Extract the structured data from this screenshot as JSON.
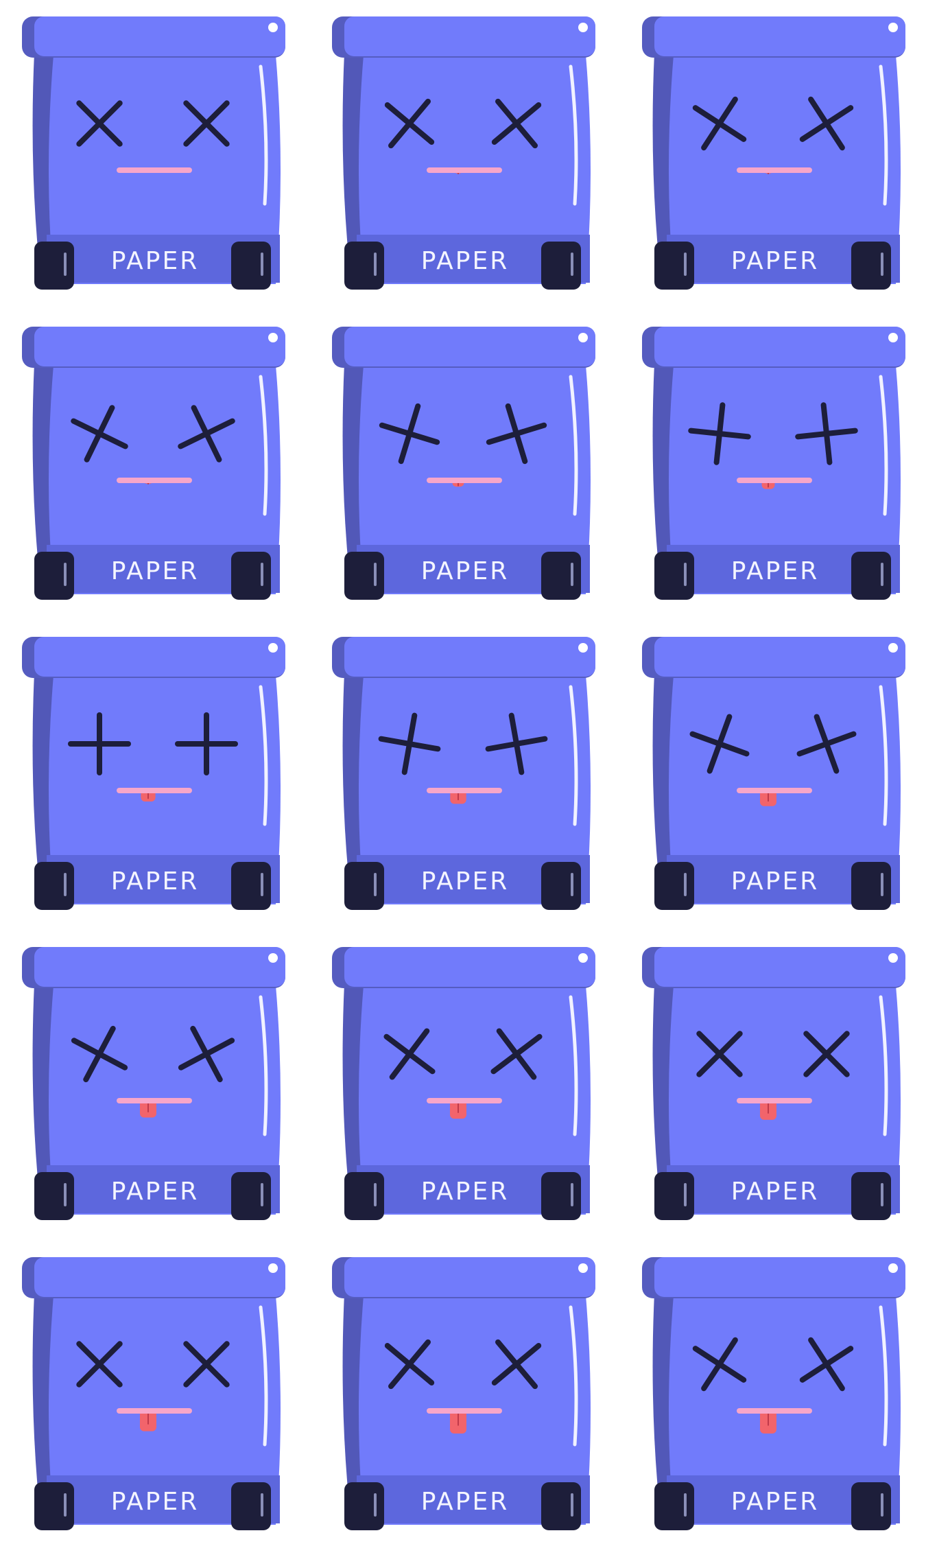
{
  "sprite_sheet": {
    "colors": {
      "background": "#ffffff",
      "body": "#717bfb",
      "body_shadow": "#5258b8",
      "lid": "#717bfb",
      "lid_shadow": "#555cc0",
      "band": "#5d67dd",
      "label_text": "#f4f5ff",
      "wheel": "#1d1e3a",
      "eye": "#1d1e3a",
      "mouth": "#f7a6c9",
      "tongue": "#f2646b"
    },
    "frames": [
      {
        "label": "PAPER",
        "eye_angle_deg": 45,
        "tongue_fraction": 0.0
      },
      {
        "label": "PAPER",
        "eye_angle_deg": 40,
        "tongue_fraction": 0.05
      },
      {
        "label": "PAPER",
        "eye_angle_deg": 33,
        "tongue_fraction": 0.1
      },
      {
        "label": "PAPER",
        "eye_angle_deg": 26,
        "tongue_fraction": 0.15
      },
      {
        "label": "PAPER",
        "eye_angle_deg": 17,
        "tongue_fraction": 0.3
      },
      {
        "label": "PAPER",
        "eye_angle_deg": 6,
        "tongue_fraction": 0.4
      },
      {
        "label": "PAPER",
        "eye_angle_deg": 0,
        "tongue_fraction": 0.5
      },
      {
        "label": "PAPER",
        "eye_angle_deg": 10,
        "tongue_fraction": 0.6
      },
      {
        "label": "PAPER",
        "eye_angle_deg": 20,
        "tongue_fraction": 0.7
      },
      {
        "label": "PAPER",
        "eye_angle_deg": 28,
        "tongue_fraction": 0.75
      },
      {
        "label": "PAPER",
        "eye_angle_deg": 37,
        "tongue_fraction": 0.8
      },
      {
        "label": "PAPER",
        "eye_angle_deg": 45,
        "tongue_fraction": 0.85
      },
      {
        "label": "PAPER",
        "eye_angle_deg": 45,
        "tongue_fraction": 0.9
      },
      {
        "label": "PAPER",
        "eye_angle_deg": 40,
        "tongue_fraction": 1.0
      },
      {
        "label": "PAPER",
        "eye_angle_deg": 33,
        "tongue_fraction": 1.0
      }
    ]
  }
}
